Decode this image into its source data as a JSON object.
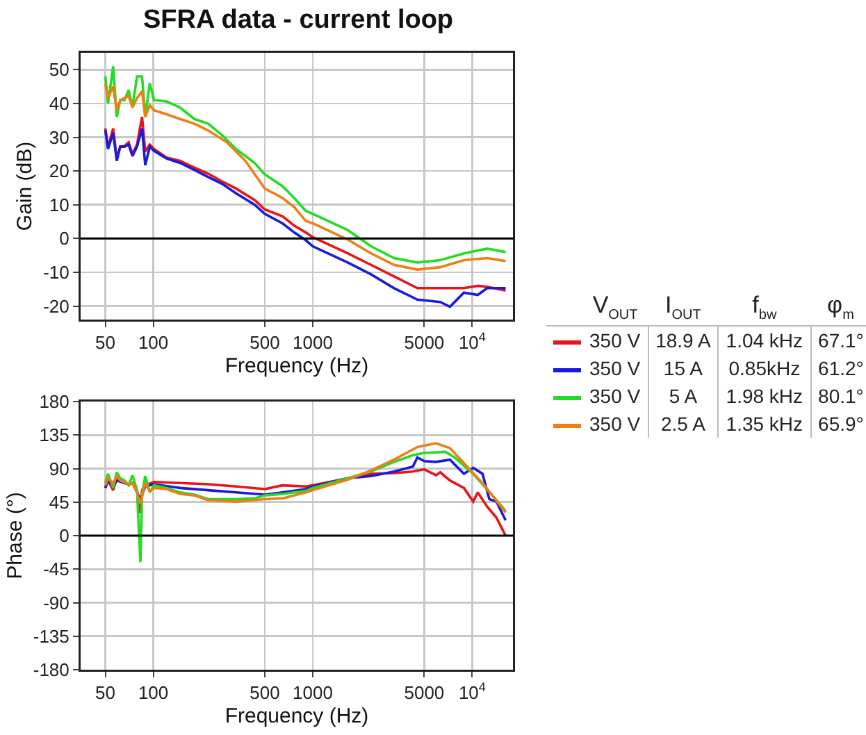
{
  "chart_data": [
    {
      "type": "line",
      "title": "SFRA data - current loop",
      "xlabel": "Frequency (Hz)",
      "ylabel": "Gain (dB)",
      "log": "x",
      "grid": true,
      "legend": "right",
      "legend_title": "V$_{OUT}$\tI$_{OUT}$\tf$_{bw}$\tφ$_{m}$",
      "xlim": [
        35,
        18000
      ],
      "xticks": [
        50,
        100,
        500,
        1000,
        5000,
        {
          "value": 10000,
          "label": "10$^{4}$"
        }
      ],
      "ylim": [
        -24,
        55
      ],
      "yticks": [
        -20,
        -10,
        0,
        10,
        20,
        30,
        40,
        50
      ],
      "ref_lines": [
        {
          "axis": "y",
          "value": 0,
          "color": "#000000"
        }
      ],
      "series": [
        {
          "name": "350 V\t18.9 A\t1.04 kHz\t67.1°",
          "color": "#e8141b",
          "x": [
            50,
            52,
            56,
            59,
            62,
            66,
            70,
            74,
            79,
            85,
            89,
            95,
            101,
            121,
            147,
            181,
            221,
            270,
            330,
            432,
            500,
            646,
            765,
            904,
            1000,
            1656,
            2317,
            3236,
            4530,
            6300,
            8870,
            10830,
            12400,
            16200
          ],
          "values": [
            32.6,
            27,
            32.6,
            23.7,
            27.2,
            27.4,
            28.5,
            25.1,
            27.8,
            36,
            25.8,
            27.8,
            26.5,
            24,
            23,
            21,
            19.2,
            16.9,
            14.8,
            11.4,
            8.6,
            6.6,
            3.8,
            1.8,
            0.4,
            -4.4,
            -7.8,
            -11.2,
            -14.7,
            -14.7,
            -14.7,
            -14,
            -14.3,
            -15.4
          ]
        },
        {
          "name": "350 V\t15 A\t0.85kHz\t61.2°",
          "color": "#1a1adb",
          "x": [
            50,
            52,
            56,
            59,
            62,
            66,
            70,
            74,
            79,
            85,
            89,
            95,
            101,
            121,
            147,
            181,
            221,
            270,
            330,
            432,
            500,
            646,
            765,
            904,
            1000,
            1656,
            2317,
            3236,
            4530,
            6300,
            7250,
            8870,
            10830,
            12400,
            16200
          ],
          "values": [
            32,
            26.5,
            31.3,
            23,
            27.2,
            27.2,
            27.8,
            24.4,
            27.2,
            32.6,
            21.7,
            27.2,
            26,
            23.7,
            22.4,
            20.3,
            18.2,
            16.2,
            13.4,
            10,
            7.3,
            4.5,
            1.8,
            -0.5,
            -2.3,
            -7.1,
            -10.6,
            -14.7,
            -18.1,
            -18.8,
            -20.2,
            -16,
            -16.7,
            -14.7,
            -14.7
          ]
        },
        {
          "name": "350 V\t5 A\t1.98 kHz\t80.1°",
          "color": "#22dd22",
          "x": [
            50,
            52,
            56,
            59,
            62,
            66,
            70,
            74,
            79,
            85,
            89,
            95,
            101,
            121,
            147,
            181,
            221,
            270,
            330,
            432,
            500,
            646,
            765,
            904,
            1000,
            1656,
            2317,
            3236,
            4530,
            6300,
            8870,
            12400,
            16200
          ],
          "values": [
            48,
            40,
            51,
            36,
            41,
            41,
            44,
            39,
            48,
            48,
            36,
            46,
            41,
            40.6,
            38.8,
            35.4,
            34,
            30.6,
            26.5,
            22.4,
            19,
            15.5,
            12,
            8.2,
            7.3,
            2.5,
            -2.3,
            -5.8,
            -7.1,
            -6.4,
            -4.4,
            -3,
            -4
          ]
        },
        {
          "name": "350 V\t2.5 A\t1.35 kHz\t65.9°",
          "color": "#ee7f14",
          "x": [
            50,
            52,
            56,
            59,
            62,
            66,
            70,
            74,
            79,
            85,
            89,
            95,
            101,
            121,
            147,
            181,
            221,
            289,
            378,
            500,
            646,
            765,
            904,
            1000,
            1656,
            2317,
            3236,
            4530,
            6300,
            8870,
            12400,
            16200
          ],
          "values": [
            45.7,
            41.6,
            45,
            38,
            41,
            41.6,
            42.2,
            38.8,
            41.6,
            43.6,
            36,
            39.5,
            38,
            36.8,
            35.4,
            34,
            32,
            28.5,
            23,
            14.8,
            12,
            9.3,
            5.2,
            4.5,
            -0.3,
            -4.4,
            -7.8,
            -9.2,
            -8.5,
            -6.4,
            -5.8,
            -6.7
          ]
        }
      ]
    },
    {
      "type": "line",
      "xlabel": "Frequency (Hz)",
      "ylabel": "Phase (°)",
      "log": "x",
      "grid": true,
      "xlim": [
        35,
        18000
      ],
      "xticks": [
        50,
        100,
        500,
        1000,
        5000,
        {
          "value": 10000,
          "label": "10$^{4}$"
        }
      ],
      "ylim": [
        -180,
        180
      ],
      "yticks": [
        -180,
        -135,
        -90,
        -45,
        0,
        45,
        90,
        135,
        180
      ],
      "ref_lines": [
        {
          "axis": "y",
          "value": 0,
          "color": "#000000"
        }
      ],
      "series": [
        {
          "color": "#e8141b",
          "x": [
            50,
            52,
            56,
            59,
            62,
            66,
            70,
            74,
            79,
            83,
            85,
            89,
            101,
            147,
            221,
            330,
            500,
            646,
            904,
            1000,
            1656,
            2317,
            3236,
            4240,
            5000,
            5930,
            6300,
            7250,
            8870,
            10140,
            10830,
            12400,
            14200,
            16200
          ],
          "values": [
            64,
            74,
            61,
            77,
            74,
            70.6,
            69,
            70.6,
            61,
            30,
            61,
            67.5,
            72,
            70.6,
            69,
            66,
            62.5,
            67.5,
            66,
            67.5,
            77,
            83,
            84,
            86,
            89,
            81,
            85,
            74,
            64,
            45.6,
            58,
            39,
            24,
            0
          ]
        },
        {
          "color": "#1a1adb",
          "x": [
            50,
            52,
            56,
            59,
            62,
            66,
            70,
            74,
            79,
            83,
            89,
            101,
            147,
            221,
            330,
            500,
            646,
            904,
            1000,
            1656,
            2317,
            3236,
            4240,
            4530,
            5000,
            5930,
            7250,
            8870,
            10140,
            11600,
            12800,
            14200,
            16200
          ],
          "values": [
            64,
            75,
            66,
            74,
            72.5,
            70.6,
            69,
            70.6,
            58,
            49,
            66,
            69,
            64,
            61,
            58,
            55,
            58,
            62.5,
            66,
            77,
            80,
            86,
            92.5,
            105,
            100,
            99,
            102,
            83,
            91,
            83,
            49,
            45.6,
            20.6
          ]
        },
        {
          "color": "#22dd22",
          "x": [
            50,
            52,
            56,
            59,
            62,
            66,
            70,
            74,
            79,
            83,
            85,
            89,
            95,
            101,
            121,
            147,
            181,
            221,
            270,
            330,
            432,
            500,
            646,
            904,
            1000,
            1656,
            2317,
            3236,
            4240,
            5000,
            6780,
            7760,
            10140,
            13250,
            16200
          ],
          "values": [
            70.6,
            83,
            64,
            85,
            77,
            74,
            67.5,
            81,
            61,
            -35.6,
            55,
            80,
            58,
            67.5,
            64,
            58,
            55,
            49,
            49,
            49,
            50,
            54,
            56,
            60,
            64,
            77,
            86,
            99,
            108,
            111,
            112.5,
            105,
            83,
            55,
            33
          ]
        },
        {
          "color": "#ee7f14",
          "x": [
            50,
            52,
            56,
            59,
            62,
            66,
            70,
            74,
            79,
            83,
            89,
            95,
            101,
            121,
            147,
            181,
            221,
            330,
            500,
            646,
            904,
            1000,
            1656,
            2317,
            3236,
            4530,
            5930,
            7250,
            8870,
            11600,
            13250,
            16200
          ],
          "values": [
            67.5,
            77,
            70.6,
            80,
            74,
            72,
            67.5,
            70.6,
            58,
            42.5,
            70.6,
            60,
            64,
            62.5,
            56,
            54,
            47.5,
            45.6,
            49,
            50,
            58,
            61,
            75,
            87.5,
            102,
            119,
            124,
            117.5,
            97.5,
            70.6,
            55,
            31
          ]
        }
      ]
    }
  ]
}
